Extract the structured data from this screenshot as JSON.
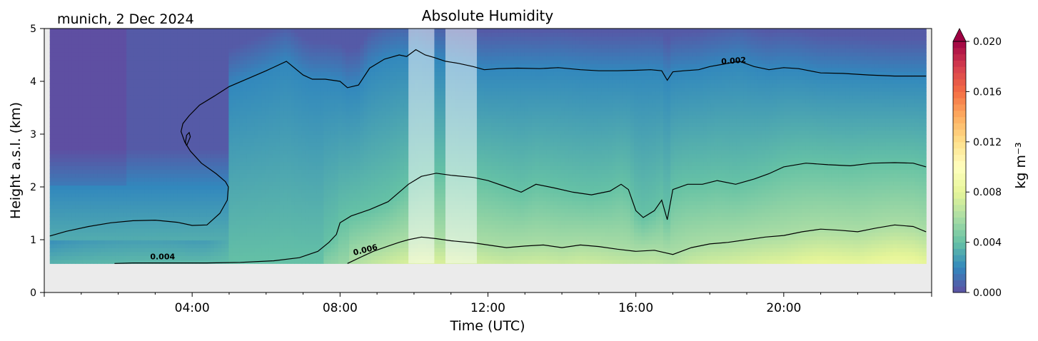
{
  "chart_data": {
    "type": "heatmap",
    "title": "Absolute Humidity",
    "location_date": "munich, 2 Dec 2024",
    "xlabel": "Time (UTC)",
    "ylabel": "Height a.s.l. (km)",
    "xlim": [
      0,
      24
    ],
    "ylim": [
      0,
      5
    ],
    "x_ticks": [
      4,
      8,
      12,
      16,
      20
    ],
    "x_tick_labels": [
      "04:00",
      "08:00",
      "12:00",
      "16:00",
      "20:00"
    ],
    "y_ticks": [
      0,
      1,
      2,
      3,
      4,
      5
    ],
    "y_tick_labels": [
      "0",
      "1",
      "2",
      "3",
      "4",
      "5"
    ],
    "grid": false,
    "data_bottom_km": 0.55,
    "no_data_periods": [
      [
        9.85,
        10.55
      ],
      [
        10.85,
        11.7
      ]
    ],
    "colorbar": {
      "label": "kg m⁻³",
      "vmin": 0.0,
      "vmax": 0.02,
      "extend": "max",
      "ticks": [
        0.0,
        0.004,
        0.008,
        0.012,
        0.016,
        0.02
      ],
      "tick_labels": [
        "0.000",
        "0.004",
        "0.008",
        "0.012",
        "0.016",
        "0.020"
      ],
      "colormap": "Spectral_r",
      "colors": [
        "#5e4fa2",
        "#3288bd",
        "#66c2a5",
        "#abdda4",
        "#e6f598",
        "#ffffbf",
        "#fee08b",
        "#fdae61",
        "#f46d43",
        "#d53e4f",
        "#9e0142"
      ]
    },
    "contour_labels": [
      {
        "text": "0.002",
        "time": 18.65,
        "height": 4.34,
        "angle": -4
      },
      {
        "text": "0.004",
        "time": 3.2,
        "height": 0.63,
        "angle": 0
      },
      {
        "text": "0.006",
        "time": 8.7,
        "height": 0.76,
        "angle": -14
      }
    ],
    "contours": [
      {
        "level": 0.002,
        "points": [
          [
            0.15,
            1.07
          ],
          [
            0.6,
            1.16
          ],
          [
            1.2,
            1.25
          ],
          [
            1.8,
            1.32
          ],
          [
            2.4,
            1.36
          ],
          [
            3.0,
            1.37
          ],
          [
            3.6,
            1.33
          ],
          [
            4.0,
            1.27
          ],
          [
            4.4,
            1.28
          ],
          [
            4.75,
            1.5
          ],
          [
            4.95,
            1.75
          ],
          [
            4.98,
            2.0
          ],
          [
            4.9,
            2.1
          ],
          [
            4.65,
            2.25
          ],
          [
            4.25,
            2.45
          ],
          [
            3.95,
            2.68
          ],
          [
            3.8,
            2.85
          ],
          [
            3.7,
            3.05
          ],
          [
            3.75,
            3.2
          ],
          [
            3.92,
            3.35
          ],
          [
            4.2,
            3.55
          ],
          [
            4.6,
            3.72
          ],
          [
            5.0,
            3.9
          ],
          [
            5.5,
            4.05
          ],
          [
            6.0,
            4.2
          ],
          [
            6.55,
            4.38
          ],
          [
            7.0,
            4.12
          ],
          [
            7.25,
            4.04
          ],
          [
            7.6,
            4.04
          ],
          [
            8.0,
            4.0
          ],
          [
            8.2,
            3.88
          ],
          [
            8.5,
            3.93
          ],
          [
            8.8,
            4.25
          ],
          [
            9.2,
            4.42
          ],
          [
            9.6,
            4.5
          ],
          [
            9.8,
            4.47
          ],
          [
            10.05,
            4.6
          ],
          [
            10.3,
            4.5
          ],
          [
            10.55,
            4.45
          ],
          [
            10.85,
            4.38
          ],
          [
            11.2,
            4.34
          ],
          [
            11.6,
            4.28
          ],
          [
            11.9,
            4.22
          ],
          [
            12.3,
            4.24
          ],
          [
            12.8,
            4.25
          ],
          [
            13.4,
            4.24
          ],
          [
            13.9,
            4.26
          ],
          [
            14.5,
            4.22
          ],
          [
            15.0,
            4.2
          ],
          [
            15.5,
            4.2
          ],
          [
            16.0,
            4.21
          ],
          [
            16.4,
            4.22
          ],
          [
            16.7,
            4.2
          ],
          [
            16.85,
            4.02
          ],
          [
            17.0,
            4.18
          ],
          [
            17.3,
            4.2
          ],
          [
            17.7,
            4.22
          ],
          [
            18.0,
            4.28
          ],
          [
            18.4,
            4.33
          ],
          [
            18.8,
            4.38
          ],
          [
            19.2,
            4.28
          ],
          [
            19.6,
            4.22
          ],
          [
            20.0,
            4.26
          ],
          [
            20.4,
            4.24
          ],
          [
            21.0,
            4.16
          ],
          [
            21.6,
            4.15
          ],
          [
            22.3,
            4.12
          ],
          [
            23.0,
            4.1
          ],
          [
            23.85,
            4.1
          ]
        ]
      },
      {
        "level": 0.002,
        "points": [
          [
            3.85,
            2.78
          ],
          [
            3.95,
            2.95
          ],
          [
            3.92,
            3.03
          ],
          [
            3.85,
            2.98
          ],
          [
            3.82,
            2.85
          ],
          [
            3.85,
            2.78
          ]
        ]
      },
      {
        "level": 0.004,
        "points": [
          [
            1.9,
            0.55
          ],
          [
            2.4,
            0.56
          ],
          [
            3.4,
            0.56
          ],
          [
            4.4,
            0.56
          ],
          [
            5.3,
            0.57
          ],
          [
            6.2,
            0.6
          ],
          [
            6.9,
            0.66
          ],
          [
            7.4,
            0.78
          ],
          [
            7.7,
            0.95
          ],
          [
            7.9,
            1.1
          ],
          [
            8.0,
            1.32
          ],
          [
            8.3,
            1.45
          ],
          [
            8.8,
            1.57
          ],
          [
            9.3,
            1.72
          ],
          [
            9.6,
            1.9
          ],
          [
            9.85,
            2.05
          ],
          [
            10.2,
            2.2
          ],
          [
            10.6,
            2.26
          ],
          [
            11.0,
            2.22
          ],
          [
            11.6,
            2.18
          ],
          [
            12.0,
            2.12
          ],
          [
            12.5,
            2.0
          ],
          [
            12.9,
            1.9
          ],
          [
            13.3,
            2.05
          ],
          [
            13.8,
            1.98
          ],
          [
            14.3,
            1.9
          ],
          [
            14.8,
            1.85
          ],
          [
            15.3,
            1.92
          ],
          [
            15.6,
            2.05
          ],
          [
            15.8,
            1.95
          ],
          [
            16.0,
            1.55
          ],
          [
            16.2,
            1.42
          ],
          [
            16.5,
            1.55
          ],
          [
            16.7,
            1.75
          ],
          [
            16.85,
            1.38
          ],
          [
            17.0,
            1.95
          ],
          [
            17.4,
            2.05
          ],
          [
            17.8,
            2.05
          ],
          [
            18.2,
            2.12
          ],
          [
            18.7,
            2.05
          ],
          [
            19.2,
            2.15
          ],
          [
            19.6,
            2.25
          ],
          [
            20.0,
            2.38
          ],
          [
            20.6,
            2.45
          ],
          [
            21.2,
            2.42
          ],
          [
            21.8,
            2.4
          ],
          [
            22.4,
            2.45
          ],
          [
            23.0,
            2.46
          ],
          [
            23.5,
            2.45
          ],
          [
            23.85,
            2.38
          ]
        ]
      },
      {
        "level": 0.006,
        "points": [
          [
            8.2,
            0.55
          ],
          [
            8.5,
            0.65
          ],
          [
            8.9,
            0.78
          ],
          [
            9.3,
            0.88
          ],
          [
            9.6,
            0.95
          ],
          [
            9.85,
            1.0
          ],
          [
            10.2,
            1.05
          ],
          [
            10.6,
            1.02
          ],
          [
            11.0,
            0.98
          ],
          [
            11.6,
            0.94
          ],
          [
            12.0,
            0.9
          ],
          [
            12.5,
            0.85
          ],
          [
            13.0,
            0.88
          ],
          [
            13.5,
            0.9
          ],
          [
            14.0,
            0.85
          ],
          [
            14.5,
            0.9
          ],
          [
            15.0,
            0.87
          ],
          [
            15.5,
            0.82
          ],
          [
            16.0,
            0.78
          ],
          [
            16.5,
            0.8
          ],
          [
            17.0,
            0.72
          ],
          [
            17.5,
            0.85
          ],
          [
            18.0,
            0.92
          ],
          [
            18.5,
            0.95
          ],
          [
            19.0,
            1.0
          ],
          [
            19.5,
            1.05
          ],
          [
            20.0,
            1.08
          ],
          [
            20.5,
            1.15
          ],
          [
            21.0,
            1.2
          ],
          [
            21.5,
            1.18
          ],
          [
            22.0,
            1.15
          ],
          [
            22.5,
            1.22
          ],
          [
            23.0,
            1.28
          ],
          [
            23.5,
            1.25
          ],
          [
            23.85,
            1.15
          ]
        ]
      }
    ]
  }
}
